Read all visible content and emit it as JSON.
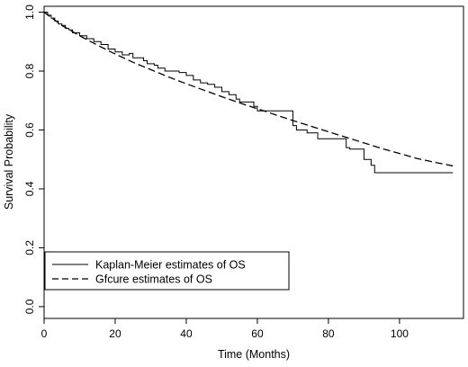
{
  "chart_data": {
    "type": "line",
    "xlabel": "Time (Months)",
    "ylabel": "Survival Probability",
    "xlim": [
      0,
      118
    ],
    "ylim": [
      -0.04,
      1.02
    ],
    "xticks": [
      0,
      20,
      40,
      60,
      80,
      100
    ],
    "yticks": [
      0.0,
      0.2,
      0.4,
      0.6,
      0.8,
      1.0
    ],
    "xtick_labels": [
      "0",
      "20",
      "40",
      "60",
      "80",
      "100"
    ],
    "ytick_labels": [
      "0.0",
      "0.2",
      "0.4",
      "0.6",
      "0.8",
      "1.0"
    ],
    "grid": false,
    "legend_position": "bottom-left",
    "series": [
      {
        "name": "Kaplan-Meier estimates of OS",
        "style": "step-solid",
        "color": "#000000",
        "x": [
          0,
          1,
          2,
          3,
          4,
          5,
          6,
          7,
          8,
          10,
          12,
          14,
          16,
          18,
          20,
          22,
          24,
          25,
          28,
          29,
          31,
          32,
          34,
          38,
          40,
          42,
          44,
          46,
          48,
          50,
          52,
          54,
          55,
          59,
          60,
          62,
          65,
          70,
          71,
          74,
          77,
          80,
          82,
          85,
          86,
          90,
          92,
          93,
          115
        ],
        "y": [
          1.0,
          0.99,
          0.98,
          0.97,
          0.96,
          0.955,
          0.945,
          0.94,
          0.93,
          0.92,
          0.91,
          0.9,
          0.89,
          0.875,
          0.865,
          0.855,
          0.86,
          0.845,
          0.835,
          0.825,
          0.82,
          0.81,
          0.8,
          0.795,
          0.785,
          0.77,
          0.76,
          0.755,
          0.745,
          0.73,
          0.72,
          0.705,
          0.695,
          0.68,
          0.665,
          0.665,
          0.665,
          0.615,
          0.6,
          0.59,
          0.57,
          0.57,
          0.57,
          0.54,
          0.535,
          0.5,
          0.48,
          0.455,
          0.455
        ]
      },
      {
        "name": "Gfcure estimates of OS",
        "style": "dashed",
        "color": "#000000",
        "x": [
          0,
          5,
          10,
          15,
          20,
          25,
          30,
          35,
          40,
          45,
          50,
          55,
          60,
          65,
          70,
          75,
          80,
          85,
          90,
          95,
          100,
          105,
          110,
          115
        ],
        "y": [
          1.0,
          0.955,
          0.92,
          0.888,
          0.858,
          0.83,
          0.805,
          0.78,
          0.757,
          0.735,
          0.713,
          0.692,
          0.672,
          0.652,
          0.632,
          0.613,
          0.594,
          0.575,
          0.556,
          0.537,
          0.52,
          0.503,
          0.49,
          0.478
        ]
      }
    ]
  }
}
